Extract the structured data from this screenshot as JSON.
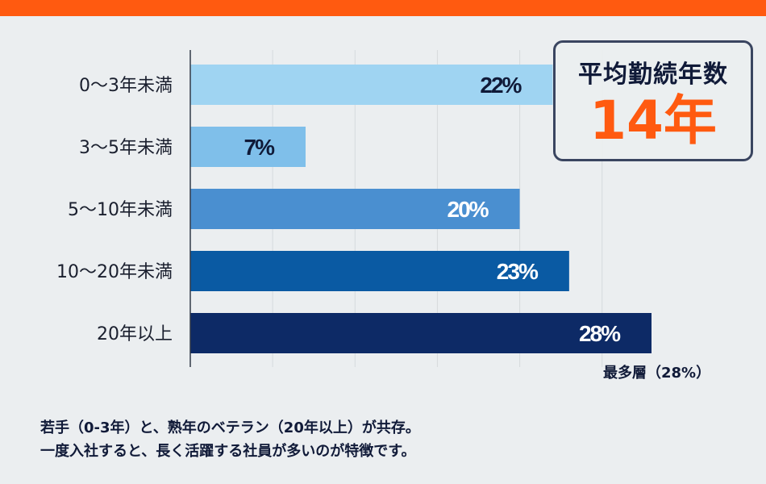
{
  "chart_data": {
    "type": "bar",
    "orientation": "horizontal",
    "categories": [
      "0〜3年未満",
      "3〜5年未満",
      "5〜10年未満",
      "10〜20年未満",
      "20年以上"
    ],
    "values": [
      22,
      7,
      20,
      23,
      28
    ],
    "value_labels": [
      "22%",
      "7%",
      "20%",
      "23%",
      "28%"
    ],
    "colors": [
      "#9fd4f2",
      "#7fbfea",
      "#4a8fd0",
      "#0a5aa3",
      "#0d2a66"
    ],
    "label_colors": [
      "#101a38",
      "#101a38",
      "#ffffff",
      "#ffffff",
      "#ffffff"
    ],
    "xlim": [
      0,
      30
    ],
    "grid": true,
    "grid_step": 5
  },
  "summary": {
    "title": "平均勤続年数",
    "value": "14年"
  },
  "annotation": "最多層（28%）",
  "footer": [
    "若手（0-3年）と、熟年のベテラン（20年以上）が共存。",
    "一度入社すると、長く活躍する社員が多いのが特徴です。"
  ],
  "colors": {
    "accent": "#ff5a10",
    "text": "#101a38",
    "background": "#ebeef0"
  }
}
